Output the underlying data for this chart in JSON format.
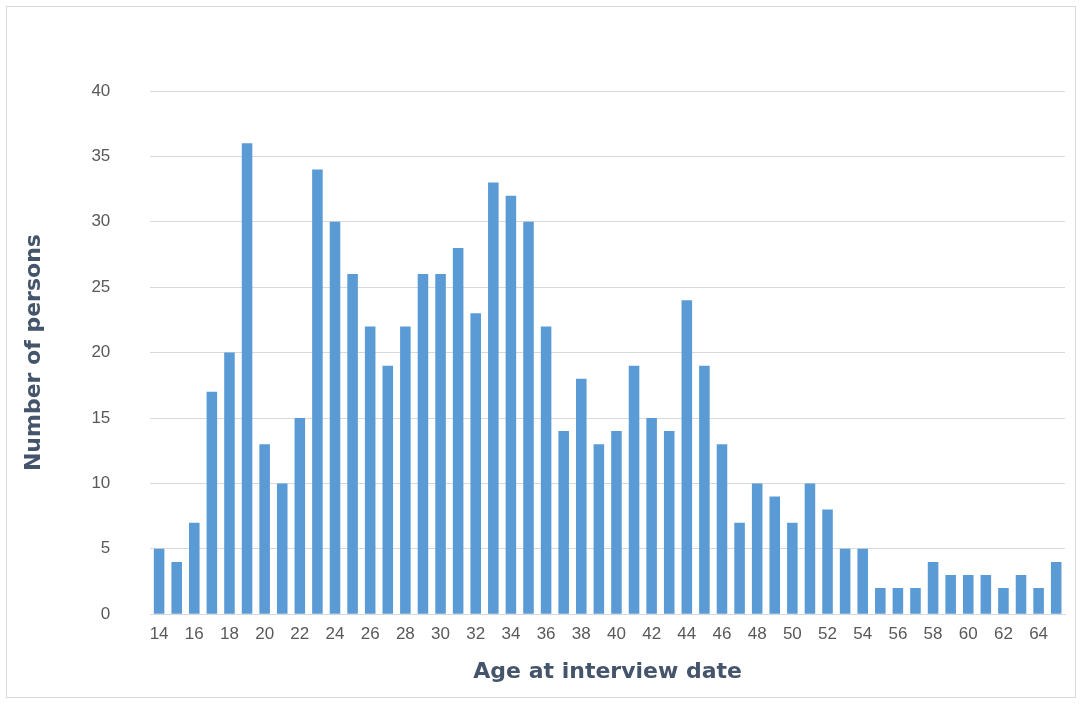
{
  "chart_data": {
    "type": "bar",
    "xlabel": "Age at interview date",
    "ylabel": "Number of persons",
    "categories": [
      "14",
      null,
      "16",
      null,
      "18",
      null,
      "20",
      null,
      "22",
      null,
      "24",
      null,
      "26",
      null,
      "28",
      null,
      "30",
      null,
      "32",
      null,
      "34",
      null,
      "36",
      null,
      "38",
      null,
      "40",
      null,
      "42",
      null,
      "44",
      null,
      "46",
      null,
      "48",
      null,
      "50",
      null,
      "52",
      null,
      "54",
      null,
      "56",
      null,
      "58",
      null,
      "60",
      null,
      "62",
      null,
      "64",
      null
    ],
    "values": [
      5,
      4,
      7,
      17,
      20,
      36,
      13,
      10,
      15,
      34,
      30,
      26,
      22,
      19,
      22,
      26,
      26,
      28,
      23,
      33,
      32,
      30,
      22,
      14,
      18,
      13,
      14,
      19,
      15,
      14,
      24,
      19,
      13,
      7,
      10,
      9,
      7,
      10,
      8,
      5,
      5,
      2,
      2,
      2,
      4,
      3,
      3,
      3,
      2,
      3,
      2,
      4
    ],
    "color": "#5b9bd5",
    "ylim": [
      0,
      40
    ],
    "yticks": [
      0,
      5,
      10,
      15,
      20,
      25,
      30,
      35,
      40
    ],
    "grid": "y",
    "legend": false
  }
}
